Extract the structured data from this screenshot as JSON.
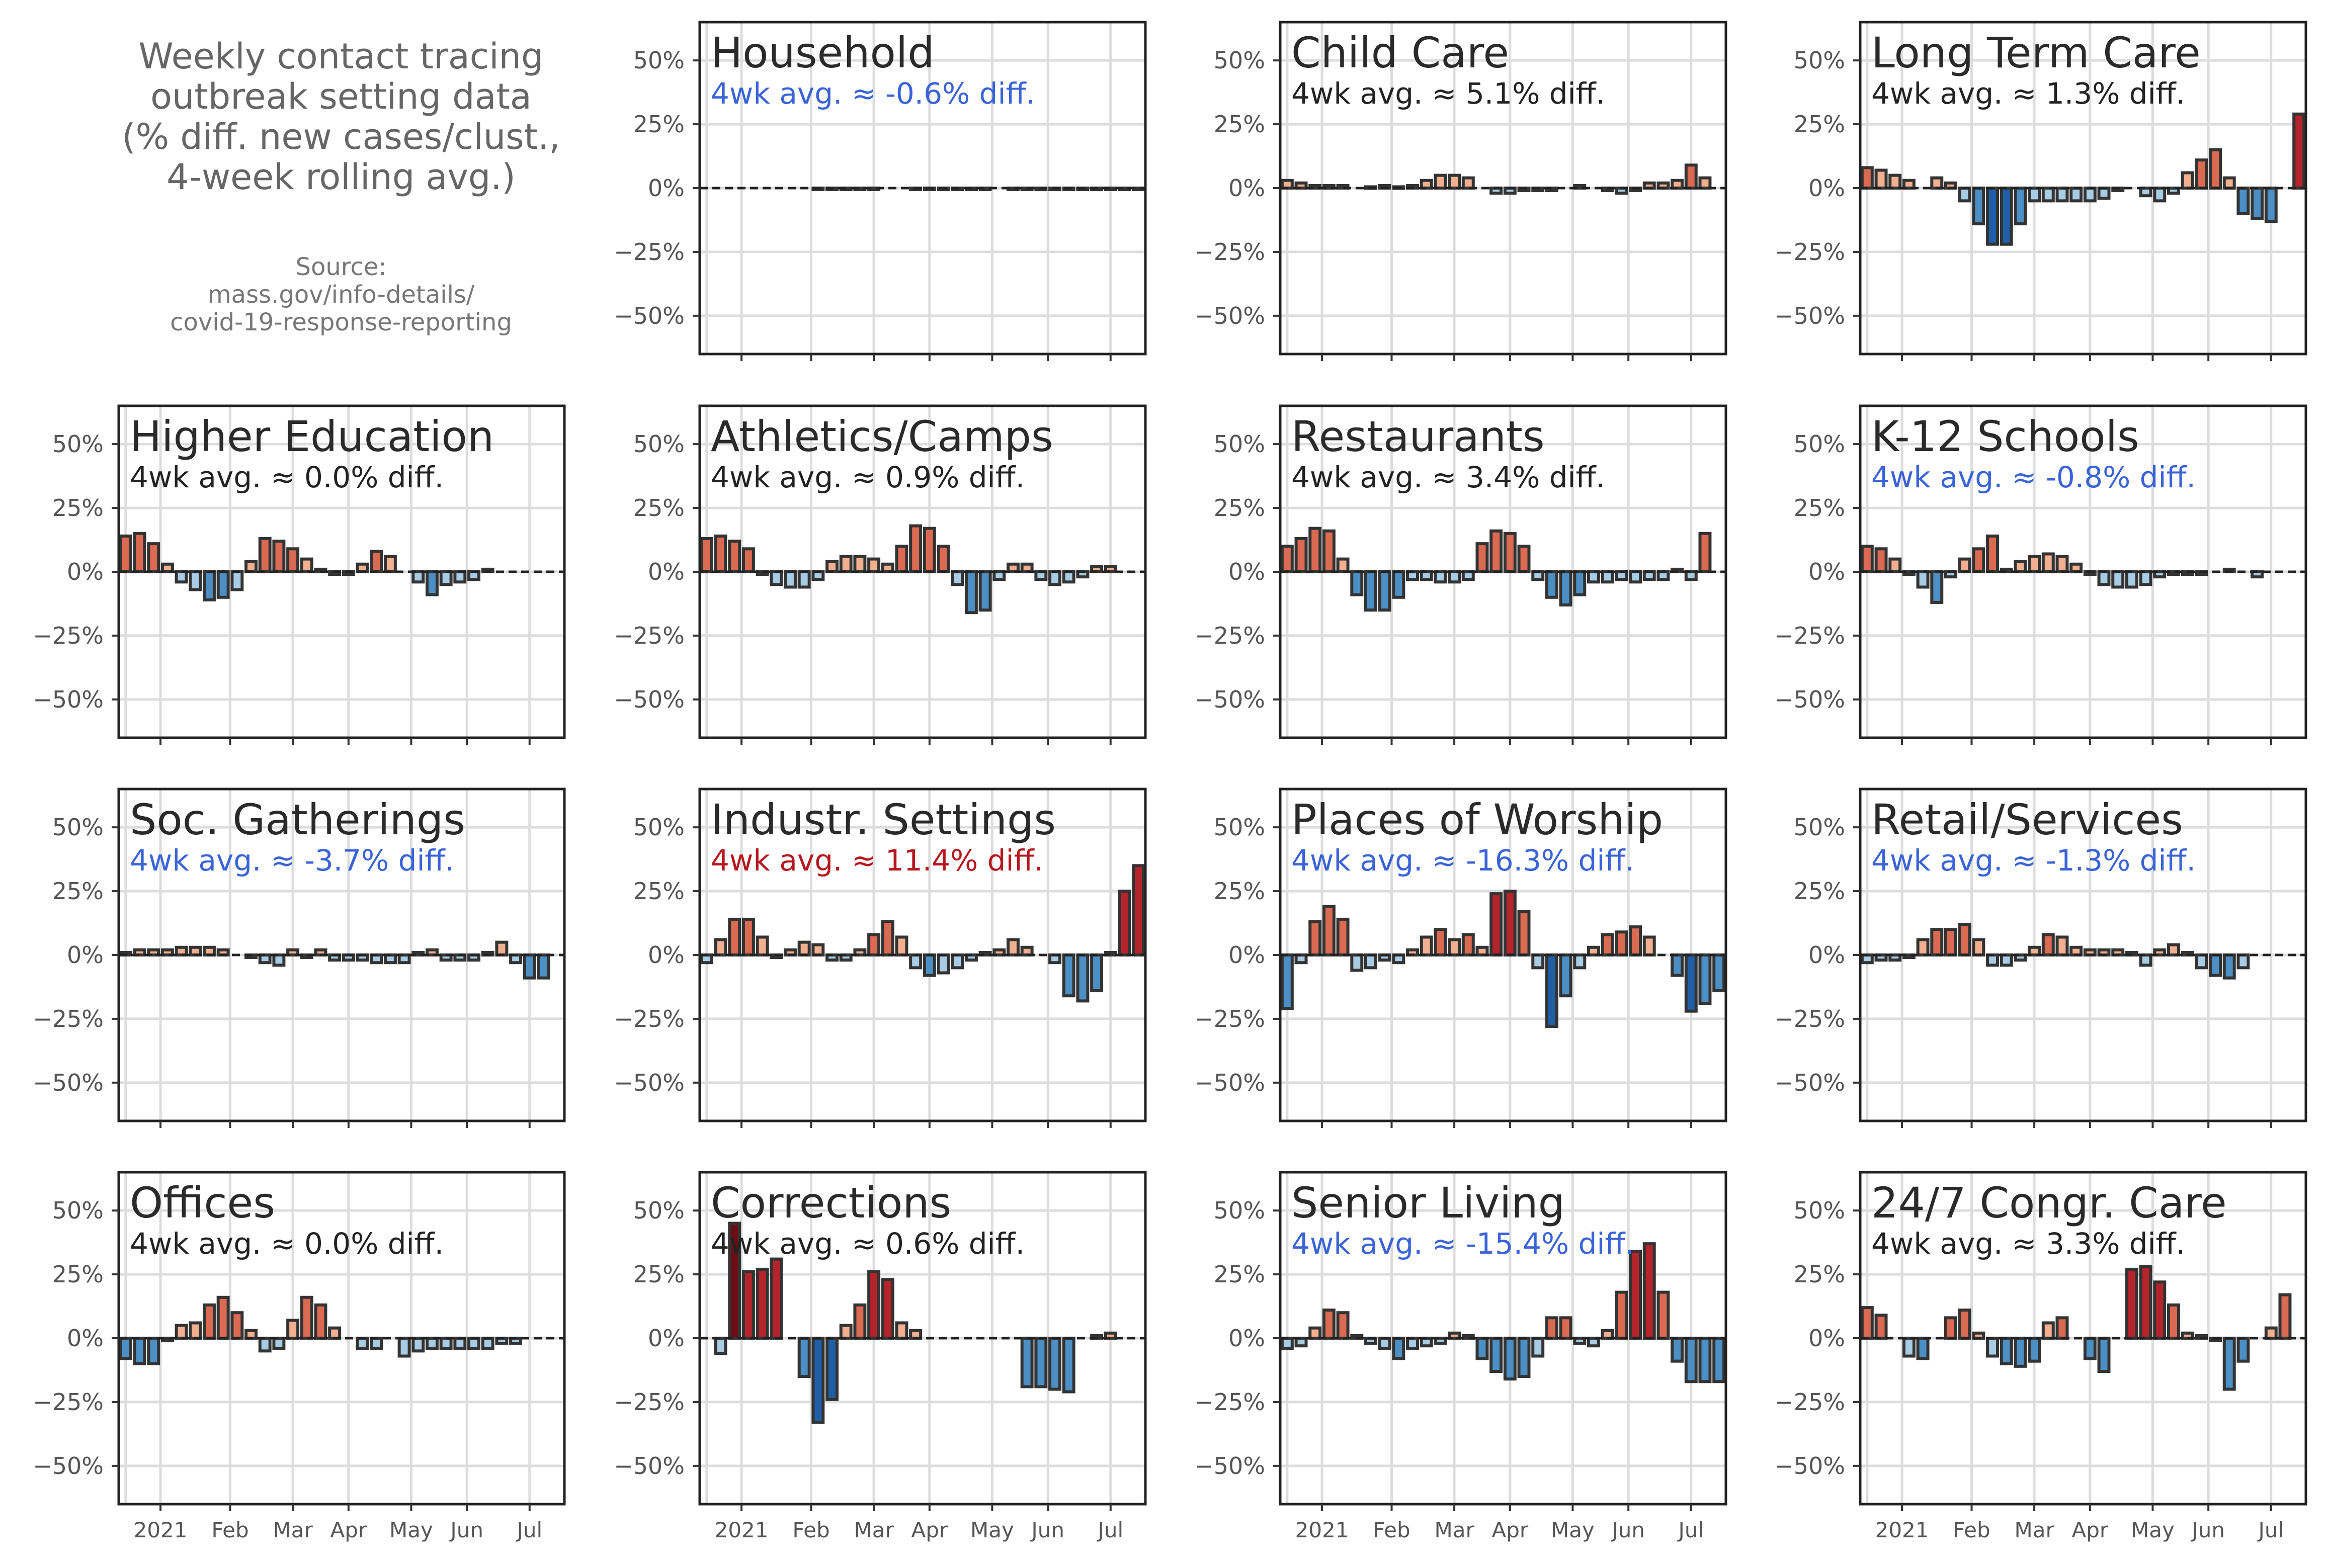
{
  "figure": {
    "title_lines": [
      "Weekly contact tracing",
      "outbreak setting data",
      "(% diff. new cases/clust.,",
      "4-week rolling avg.)"
    ],
    "source_lines": [
      "Source:",
      "mass.gov/info-details/",
      "covid-19-response-reporting"
    ]
  },
  "colors": {
    "frame": "#222222",
    "grid": "#dddddd",
    "axis_text": "#555555",
    "panel_title": "#2a2a2a",
    "subtitle_neutral": "#222222",
    "subtitle_negative": "#3a63d6",
    "subtitle_positive": "#b5161e",
    "diverging_scale": {
      "neg_strong": "#1f5fa8",
      "neg_mid": "#4b8fc4",
      "neg_light": "#a8cce4",
      "neutral": "#f2f2f2",
      "pos_light": "#f2b091",
      "pos_mid": "#db6a52",
      "pos_strong": "#b4242a",
      "pos_darkest": "#6d0c16"
    }
  },
  "chart_data": [
    {
      "type": "bar",
      "title": "Household",
      "subtitle": "4wk avg. ≈ -0.6% diff.",
      "subtitle_tone": "negative",
      "ylim": [
        -65,
        65
      ],
      "yticks": [
        "50%",
        "25%",
        "0%",
        "−25%",
        "−50%"
      ],
      "values": [
        0,
        0,
        0,
        0,
        0,
        0,
        0,
        0,
        -0.5,
        -0.5,
        -0.5,
        -0.5,
        -0.5,
        0,
        0,
        -0.5,
        -0.5,
        -0.5,
        -0.5,
        -0.5,
        -0.5,
        0,
        -0.5,
        -0.5,
        -0.5,
        -0.5,
        -0.5,
        -0.5,
        -0.5,
        -0.5,
        -0.5,
        -0.5
      ]
    },
    {
      "type": "bar",
      "title": "Child Care",
      "subtitle": "4wk avg. ≈ 5.1% diff.",
      "subtitle_tone": "neutral",
      "ylim": [
        -65,
        65
      ],
      "yticks": [
        "50%",
        "25%",
        "0%",
        "−25%",
        "−50%"
      ],
      "values": [
        3,
        2,
        1,
        1,
        1,
        0,
        0.5,
        1,
        0.5,
        1,
        3,
        5,
        5,
        4,
        0,
        -2,
        -2,
        -1,
        -1,
        -1,
        0,
        1,
        0,
        -1,
        -2,
        -1,
        2,
        2,
        3,
        9,
        4
      ]
    },
    {
      "type": "bar",
      "title": "Long Term Care",
      "subtitle": "4wk avg. ≈ 1.3% diff.",
      "subtitle_tone": "neutral",
      "ylim": [
        -65,
        65
      ],
      "yticks": [
        "50%",
        "25%",
        "0%",
        "−25%",
        "−50%"
      ],
      "values": [
        8,
        7,
        5,
        3,
        0,
        4,
        2,
        -5,
        -14,
        -22,
        -22,
        -14,
        -5,
        -5,
        -5,
        -5,
        -5,
        -4,
        -1,
        0,
        -3,
        -5,
        -2,
        6,
        11,
        15,
        4,
        -10,
        -12,
        -13,
        0,
        29
      ]
    },
    {
      "type": "bar",
      "title": "Higher Education",
      "subtitle": "4wk avg. ≈ 0.0% diff.",
      "subtitle_tone": "neutral",
      "ylim": [
        -65,
        65
      ],
      "yticks": [
        "50%",
        "25%",
        "0%",
        "−25%",
        "−50%"
      ],
      "values": [
        14,
        15,
        11,
        3,
        -4,
        -7,
        -11,
        -10,
        -7,
        4,
        13,
        12,
        9,
        5,
        1,
        -1,
        -1,
        3,
        8,
        6,
        0,
        -4,
        -9,
        -5,
        -4,
        -3,
        1,
        0,
        0,
        0,
        0
      ]
    },
    {
      "type": "bar",
      "title": "Athletics/Camps",
      "subtitle": "4wk avg. ≈ 0.9% diff.",
      "subtitle_tone": "neutral",
      "ylim": [
        -65,
        65
      ],
      "yticks": [
        "50%",
        "25%",
        "0%",
        "−25%",
        "−50%"
      ],
      "values": [
        13,
        14,
        12,
        9,
        -1,
        -5,
        -6,
        -6,
        -3,
        4,
        6,
        6,
        5,
        3,
        10,
        18,
        17,
        10,
        -5,
        -16,
        -15,
        -3,
        3,
        3,
        -3,
        -5,
        -4,
        -2,
        2,
        2,
        0
      ]
    },
    {
      "type": "bar",
      "title": "Restaurants",
      "subtitle": "4wk avg. ≈ 3.4% diff.",
      "subtitle_tone": "neutral",
      "ylim": [
        -65,
        65
      ],
      "yticks": [
        "50%",
        "25%",
        "0%",
        "−25%",
        "−50%"
      ],
      "values": [
        10,
        13,
        17,
        16,
        5,
        -9,
        -15,
        -15,
        -10,
        -3,
        -3,
        -4,
        -4,
        -3,
        11,
        16,
        15,
        10,
        -3,
        -10,
        -13,
        -9,
        -4,
        -4,
        -3,
        -4,
        -3,
        -3,
        1,
        -3,
        15
      ]
    },
    {
      "type": "bar",
      "title": "K-12 Schools",
      "subtitle": "4wk avg. ≈ -0.8% diff.",
      "subtitle_tone": "negative",
      "ylim": [
        -65,
        65
      ],
      "yticks": [
        "50%",
        "25%",
        "0%",
        "−25%",
        "−50%"
      ],
      "values": [
        10,
        9,
        5,
        -1,
        -6,
        -12,
        -2,
        5,
        9,
        14,
        1,
        4,
        6,
        7,
        6,
        3,
        -1,
        -5,
        -6,
        -6,
        -5,
        -2,
        -1,
        -1,
        -1,
        0,
        1,
        0,
        -2,
        0,
        0
      ]
    },
    {
      "type": "bar",
      "title": "Soc. Gatherings",
      "subtitle": "4wk avg. ≈ -3.7% diff.",
      "subtitle_tone": "negative",
      "ylim": [
        -65,
        65
      ],
      "yticks": [
        "50%",
        "25%",
        "0%",
        "−25%",
        "−50%"
      ],
      "values": [
        1,
        2,
        2,
        2,
        3,
        3,
        3,
        2,
        0,
        -1,
        -3,
        -4,
        2,
        -1,
        2,
        -2,
        -2,
        -2,
        -3,
        -3,
        -3,
        1,
        2,
        -2,
        -2,
        -2,
        1,
        5,
        -3,
        -9,
        -9
      ]
    },
    {
      "type": "bar",
      "title": "Industr. Settings",
      "subtitle": "4wk avg. ≈ 11.4% diff.",
      "subtitle_tone": "positive",
      "ylim": [
        -65,
        65
      ],
      "yticks": [
        "50%",
        "25%",
        "0%",
        "−25%",
        "−50%"
      ],
      "values": [
        -3,
        6,
        14,
        14,
        7,
        -1,
        2,
        5,
        4,
        -2,
        -2,
        2,
        8,
        13,
        7,
        -5,
        -8,
        -7,
        -5,
        -2,
        1,
        2,
        6,
        3,
        0,
        -3,
        -16,
        -18,
        -14,
        1,
        25,
        35
      ]
    },
    {
      "type": "bar",
      "title": "Places of Worship",
      "subtitle": "4wk avg. ≈ -16.3% diff.",
      "subtitle_tone": "negative",
      "ylim": [
        -65,
        65
      ],
      "yticks": [
        "50%",
        "25%",
        "0%",
        "−25%",
        "−50%"
      ],
      "values": [
        -21,
        -3,
        13,
        19,
        14,
        -6,
        -5,
        -2,
        -3,
        2,
        7,
        10,
        6,
        8,
        3,
        24,
        25,
        17,
        -5,
        -28,
        -16,
        -5,
        3,
        8,
        9,
        11,
        7,
        0,
        -8,
        -22,
        -19,
        -14
      ]
    },
    {
      "type": "bar",
      "title": "Retail/Services",
      "subtitle": "4wk avg. ≈ -1.3% diff.",
      "subtitle_tone": "negative",
      "ylim": [
        -65,
        65
      ],
      "yticks": [
        "50%",
        "25%",
        "0%",
        "−25%",
        "−50%"
      ],
      "values": [
        -3,
        -2,
        -2,
        -1,
        6,
        10,
        10,
        12,
        6,
        -4,
        -4,
        -2,
        3,
        8,
        7,
        3,
        2,
        2,
        2,
        1,
        -4,
        2,
        4,
        1,
        -5,
        -8,
        -9,
        -5,
        0,
        0,
        0
      ]
    },
    {
      "type": "bar",
      "title": "Offices",
      "subtitle": "4wk avg. ≈ 0.0% diff.",
      "subtitle_tone": "neutral",
      "ylim": [
        -65,
        65
      ],
      "yticks": [
        "50%",
        "25%",
        "0%",
        "−25%",
        "−50%"
      ],
      "values": [
        -8,
        -10,
        -10,
        -1,
        5,
        6,
        13,
        16,
        10,
        3,
        -5,
        -4,
        7,
        16,
        13,
        4,
        0,
        -4,
        -4,
        0,
        -7,
        -5,
        -4,
        -4,
        -4,
        -4,
        -4,
        -2,
        -2,
        0,
        0
      ]
    },
    {
      "type": "bar",
      "title": "Corrections",
      "subtitle": "4wk avg. ≈ 0.6% diff.",
      "subtitle_tone": "neutral",
      "ylim": [
        -65,
        65
      ],
      "yticks": [
        "50%",
        "25%",
        "0%",
        "−25%",
        "−50%"
      ],
      "values": [
        0,
        -6,
        45,
        26,
        27,
        31,
        0,
        -15,
        -33,
        -24,
        5,
        13,
        26,
        23,
        6,
        3,
        0,
        0,
        0,
        0,
        0,
        0,
        0,
        -19,
        -19,
        -20,
        -21,
        0,
        1,
        2,
        0
      ]
    },
    {
      "type": "bar",
      "title": "Senior Living",
      "subtitle": "4wk avg. ≈ -15.4% diff.",
      "subtitle_tone": "negative",
      "ylim": [
        -65,
        65
      ],
      "yticks": [
        "50%",
        "25%",
        "0%",
        "−25%",
        "−50%"
      ],
      "values": [
        -4,
        -3,
        4,
        11,
        10,
        1,
        -2,
        -4,
        -8,
        -4,
        -3,
        -2,
        2,
        1,
        -8,
        -13,
        -16,
        -15,
        -7,
        8,
        8,
        -2,
        -3,
        3,
        18,
        34,
        37,
        18,
        -9,
        -17,
        -17,
        -17
      ]
    },
    {
      "type": "bar",
      "title": "24/7 Congr. Care",
      "subtitle": "4wk avg. ≈ 3.3% diff.",
      "subtitle_tone": "neutral",
      "ylim": [
        -65,
        65
      ],
      "yticks": [
        "50%",
        "25%",
        "0%",
        "−25%",
        "−50%"
      ],
      "values": [
        12,
        9,
        0,
        -7,
        -8,
        0,
        8,
        11,
        2,
        -7,
        -10,
        -11,
        -9,
        6,
        8,
        0,
        -8,
        -13,
        0,
        27,
        28,
        22,
        13,
        2,
        1,
        -1,
        -20,
        -9,
        0,
        4,
        17
      ],
      "xticks": [
        "2021",
        "Feb",
        "Mar",
        "Apr",
        "May",
        "Jun",
        "Jul"
      ]
    }
  ]
}
